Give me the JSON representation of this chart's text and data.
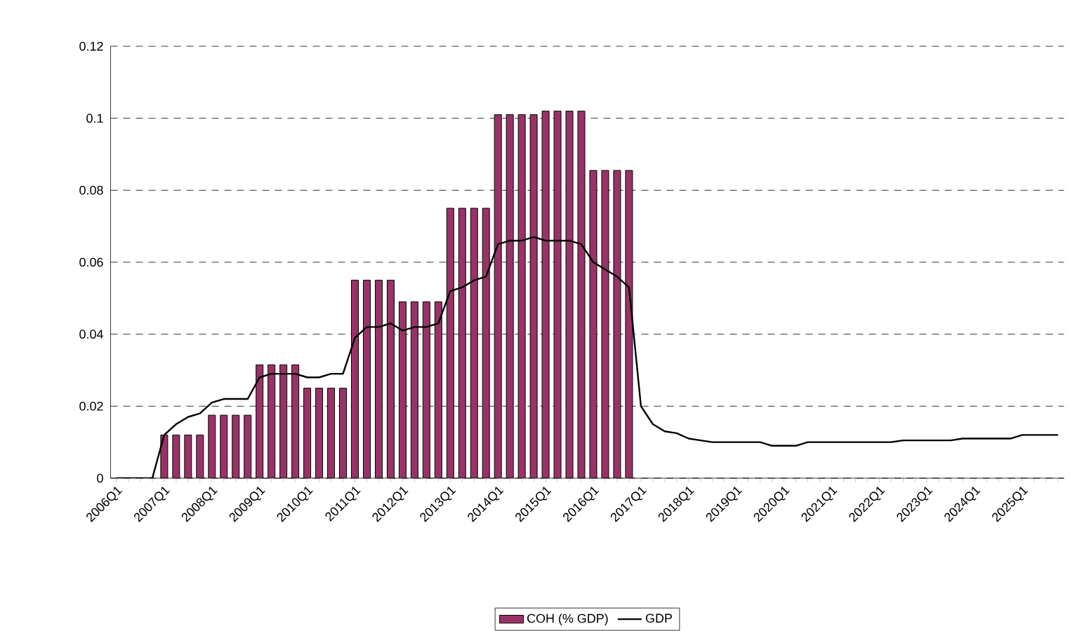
{
  "chart_data": {
    "type": "bar",
    "categories": [
      "2006Q1",
      null,
      null,
      null,
      "2007Q1",
      null,
      null,
      null,
      "2008Q1",
      null,
      null,
      null,
      "2009Q1",
      null,
      null,
      null,
      "2010Q1",
      null,
      null,
      null,
      "2011Q1",
      null,
      null,
      null,
      "2012Q1",
      null,
      null,
      null,
      "2013Q1",
      null,
      null,
      null,
      "2014Q1",
      null,
      null,
      null,
      "2015Q1",
      null,
      null,
      null,
      "2016Q1",
      null,
      null,
      null,
      "2017Q1",
      null,
      null,
      null,
      "2018Q1",
      null,
      null,
      null,
      "2019Q1",
      null,
      null,
      null,
      "2020Q1",
      null,
      null,
      null,
      "2021Q1",
      null,
      null,
      null,
      "2022Q1",
      null,
      null,
      null,
      "2023Q1",
      null,
      null,
      null,
      "2024Q1",
      null,
      null,
      null,
      "2025Q1",
      null,
      null,
      null
    ],
    "series": [
      {
        "name": "COH (% GDP)",
        "color": "#993366",
        "values": [
          null,
          null,
          null,
          null,
          0.012,
          0.012,
          0.012,
          0.012,
          0.0175,
          0.0175,
          0.0175,
          0.0175,
          0.0315,
          0.0315,
          0.0315,
          0.0315,
          0.025,
          0.025,
          0.025,
          0.025,
          0.055,
          0.055,
          0.055,
          0.055,
          0.049,
          0.049,
          0.049,
          0.049,
          0.075,
          0.075,
          0.075,
          0.075,
          0.101,
          0.101,
          0.101,
          0.101,
          0.102,
          0.102,
          0.102,
          0.102,
          0.0855,
          0.0855,
          0.0855,
          0.0855,
          null,
          null,
          null,
          null,
          null,
          null,
          null,
          null,
          null,
          null,
          null,
          null,
          null,
          null,
          null,
          null,
          null,
          null,
          null,
          null,
          null,
          null,
          null,
          null,
          null,
          null,
          null,
          null,
          null,
          null,
          null,
          null,
          null,
          null,
          null,
          null
        ]
      },
      {
        "name": "GDP",
        "type": "line",
        "color": "#000000",
        "values": [
          0,
          0,
          0,
          0,
          0.012,
          0.015,
          0.017,
          0.018,
          0.021,
          0.022,
          0.022,
          0.022,
          0.028,
          0.029,
          0.029,
          0.029,
          0.028,
          0.028,
          0.029,
          0.029,
          0.039,
          0.042,
          0.042,
          0.043,
          0.041,
          0.042,
          0.042,
          0.043,
          0.052,
          0.053,
          0.055,
          0.056,
          0.065,
          0.066,
          0.066,
          0.067,
          0.066,
          0.066,
          0.066,
          0.065,
          0.06,
          0.058,
          0.056,
          0.053,
          0.02,
          0.015,
          0.013,
          0.0125,
          0.011,
          0.0105,
          0.01,
          0.01,
          0.01,
          0.01,
          0.01,
          0.009,
          0.009,
          0.009,
          0.01,
          0.01,
          0.01,
          0.01,
          0.01,
          0.01,
          0.01,
          0.01,
          0.0105,
          0.0105,
          0.0105,
          0.0105,
          0.0105,
          0.011,
          0.011,
          0.011,
          0.011,
          0.011,
          0.012,
          0.012,
          0.012,
          0.012
        ]
      }
    ],
    "ylim": [
      0,
      0.12
    ],
    "yticks": [
      0,
      0.02,
      0.04,
      0.06,
      0.08,
      0.1,
      0.12
    ],
    "grid": "y",
    "legend": "bottom",
    "marker": "none",
    "line_style": "solid"
  }
}
